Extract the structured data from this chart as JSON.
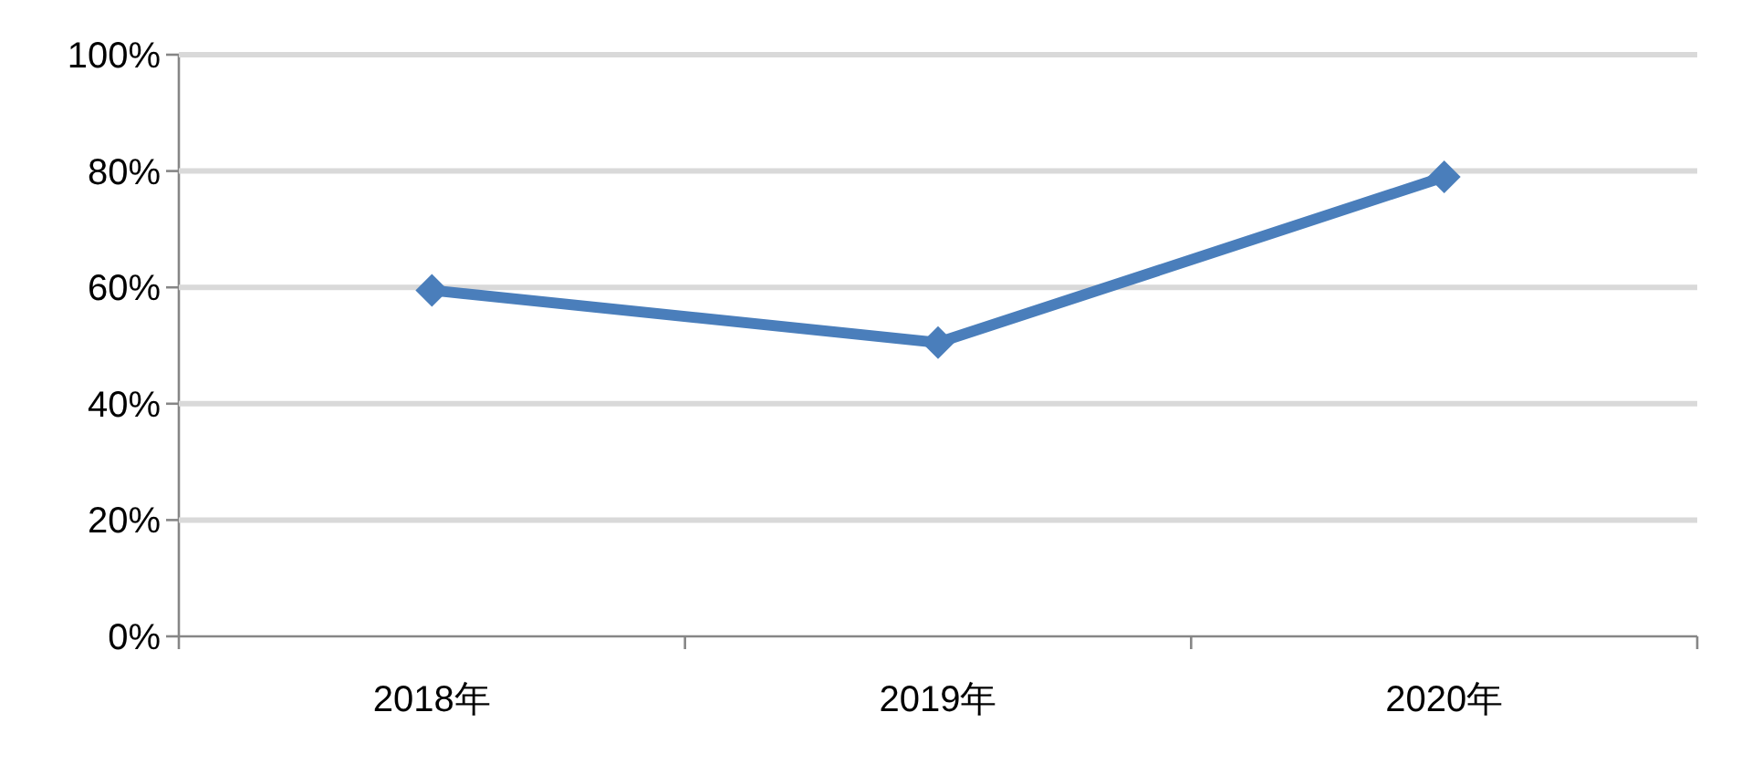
{
  "chart_data": {
    "type": "line",
    "categories": [
      "2018年",
      "2019年",
      "2020年"
    ],
    "series": [
      {
        "color": "#4a7ebb",
        "values": [
          59.5,
          50.5,
          79
        ]
      }
    ],
    "ylim": [
      0,
      100
    ],
    "yticks": [
      {
        "value": 0,
        "label": "0%"
      },
      {
        "value": 20,
        "label": "20%"
      },
      {
        "value": 40,
        "label": "40%"
      },
      {
        "value": 60,
        "label": "60%"
      },
      {
        "value": 80,
        "label": "80%"
      },
      {
        "value": 100,
        "label": "100%"
      }
    ],
    "grid": "y",
    "marker": "diamond",
    "line_style": "solid"
  }
}
